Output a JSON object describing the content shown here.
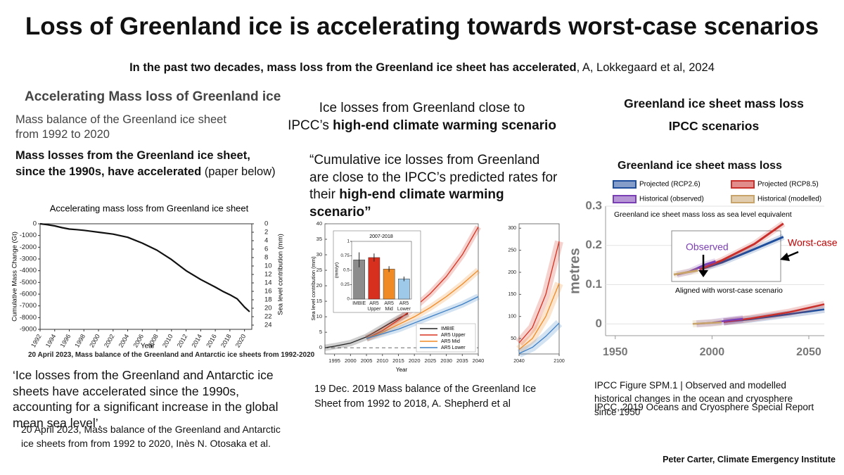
{
  "slide": {
    "title": "Loss of Greenland ice is accelerating towards worst-case scenarios",
    "subtitle": {
      "bold": "In the past two decades, mass loss from the Greenland ice sheet has accelerated",
      "rest": ", A, Lokkegaard et al, 2024"
    },
    "left": {
      "heading": "Accelerating Mass loss of Greenland  ice",
      "intro": "Mass balance of the Greenland  ice sheet from 1992 to 2020",
      "claim": {
        "bold": "Mass losses from the Greenland ice sheet, since the 1990s, have accelerated",
        "rest": " (paper below)"
      },
      "figure_caption": "20 April 2023, Mass balance of the Greenland and Antarctic ice sheets from 1992-2020",
      "quote": "‘Ice losses from the Greenland and Antarctic ice sheets have accelerated since the 1990s, accounting for a significant increase in the global mean sea level’.",
      "citation": "20 April 2023, Mass balance of the Greenland and Antarctic ice sheets from from 1992 to 2020, Inès N. Otosaka et al."
    },
    "middle": {
      "heading": {
        "line1": "Ice losses from  Greenland close to",
        "line2_plain": "IPCC’s ",
        "line2_bold": "high-end climate warming scenario"
      },
      "quote": {
        "plain": "“Cumulative ice losses from  Greenland are close to the IPCC’s predicted rates for their ",
        "bold": "high-end climate warming scenario”"
      },
      "citation": "19 Dec. 2019 Mass balance of the Greenland Ice Sheet from 1992 to 2018, A. Shepherd et al"
    },
    "right": {
      "heading1": "Greenland ice sheet mass loss",
      "heading2": "IPCC scenarios",
      "caption": "IPCC Figure SPM.1 | Observed and modelled historical changes in the ocean and cryosphere since 1950",
      "citation": "IPCC, 2019 Oceans and Cryosphere Special Report"
    },
    "footer": "Peter Carter, Climate Emergency Institute"
  },
  "chart_data": [
    {
      "type": "line",
      "title": "Accelerating mass loss from Greenland ice sheet",
      "x_label": "Year",
      "y_label": "Cumulative Mass Change (Gt)",
      "y2_label": "Sea level contribution (mm)",
      "xlim": [
        1992,
        2021
      ],
      "xticks": [
        1992,
        1994,
        1996,
        1998,
        2000,
        2002,
        2004,
        2006,
        2008,
        2010,
        2012,
        2014,
        2016,
        2018,
        2020
      ],
      "ylim": [
        -9000,
        0
      ],
      "yticks": [
        0,
        -1000,
        -2000,
        -3000,
        -4000,
        -5000,
        -6000,
        -7000,
        -8000,
        -9000
      ],
      "y2lim": [
        25,
        0
      ],
      "y2ticks": [
        0,
        2,
        4,
        6,
        8,
        10,
        12,
        14,
        16,
        18,
        20,
        22,
        24
      ],
      "series": [
        {
          "color": "#111111",
          "x": [
            1992,
            1993,
            1994,
            1995,
            1996,
            1997,
            1998,
            2000,
            2002,
            2004,
            2006,
            2008,
            2010,
            2012,
            2014,
            2016,
            2017,
            2018,
            2019,
            2020,
            2020.7
          ],
          "values": [
            0,
            -80,
            -180,
            -330,
            -450,
            -500,
            -560,
            -720,
            -880,
            -1150,
            -1650,
            -2250,
            -3050,
            -4000,
            -4750,
            -5400,
            -5750,
            -6050,
            -6400,
            -7100,
            -7500
          ]
        }
      ]
    },
    {
      "type": "line",
      "x_label": "Year",
      "y_label": "Sea level contribution (mm)",
      "xlim": [
        1992,
        2040
      ],
      "xticks": [
        1995,
        2000,
        2005,
        2010,
        2015,
        2020,
        2025,
        2030,
        2035,
        2040
      ],
      "ylim": [
        -2,
        40
      ],
      "yticks": [
        0,
        5,
        10,
        15,
        20,
        25,
        30,
        35,
        40
      ],
      "series": [
        {
          "name": "IMBIE",
          "color": "#222222",
          "x": [
            1992,
            1995,
            2000,
            2005,
            2010,
            2015,
            2018
          ],
          "values": [
            0,
            0.5,
            1.5,
            3.5,
            6.5,
            9.5,
            11
          ]
        },
        {
          "name": "AR5 Upper",
          "color": "#d7301f",
          "x": [
            2005,
            2010,
            2015,
            2020,
            2025,
            2030,
            2035,
            2040
          ],
          "values": [
            3,
            5.5,
            9,
            13,
            17.5,
            23,
            30,
            39
          ]
        },
        {
          "name": "AR5 Mid",
          "color": "#f08a24",
          "x": [
            2005,
            2010,
            2015,
            2020,
            2025,
            2030,
            2035,
            2040
          ],
          "values": [
            3,
            5,
            7.5,
            10,
            13,
            16.5,
            20.5,
            25
          ]
        },
        {
          "name": "AR5 Lower",
          "color": "#3d7fc4",
          "x": [
            2005,
            2010,
            2015,
            2020,
            2025,
            2030,
            2035,
            2040
          ],
          "values": [
            3,
            4.5,
            6,
            8,
            10,
            12,
            14,
            16.5
          ]
        }
      ]
    },
    {
      "type": "bar",
      "title": "2007-2018",
      "y_label": "(mm/yr)",
      "categories": [
        "IMBIE",
        "AR5 Upper",
        "AR5 Mid",
        "AR5 Lower"
      ],
      "values": [
        0.68,
        0.72,
        0.52,
        0.35
      ],
      "errors": [
        0.13,
        0.07,
        0.05,
        0.04
      ],
      "colors": [
        "#8c8c8c",
        "#d7301f",
        "#f08a24",
        "#9ec9e8"
      ],
      "ylim": [
        0,
        1
      ],
      "yticks": [
        0,
        0.25,
        0.5,
        0.75,
        1
      ]
    },
    {
      "type": "line",
      "xlim": [
        2040,
        2100
      ],
      "xticks": [
        2040,
        2100
      ],
      "ylim": [
        15,
        310
      ],
      "yticks": [
        50,
        100,
        150,
        200,
        250,
        300
      ],
      "series": [
        {
          "color": "#d7301f",
          "x": [
            2040,
            2060,
            2080,
            2100
          ],
          "values": [
            40,
            75,
            150,
            270
          ]
        },
        {
          "color": "#f08a24",
          "x": [
            2040,
            2060,
            2080,
            2100
          ],
          "values": [
            25,
            50,
            100,
            175
          ]
        },
        {
          "color": "#3d7fc4",
          "x": [
            2040,
            2060,
            2080,
            2100
          ],
          "values": [
            16,
            30,
            55,
            85
          ]
        }
      ]
    },
    {
      "type": "line",
      "title": "Greenland ice sheet mass loss",
      "subtitle": "Greenland ice sheet mass loss as sea level equivalent",
      "y_label": "metres",
      "xlim": [
        1945,
        2058
      ],
      "xticks": [
        1950,
        2000,
        2050
      ],
      "ylim": [
        -0.03,
        0.3
      ],
      "yticks": [
        0,
        0.1,
        0.2,
        0.3
      ],
      "series": [
        {
          "name": "Projected (RCP2.6)",
          "color": "#1f4e9c",
          "x": [
            2006,
            2020,
            2040,
            2058
          ],
          "values": [
            0.005,
            0.012,
            0.025,
            0.037
          ]
        },
        {
          "name": "Projected (RCP8.5)",
          "color": "#c9302c",
          "x": [
            2006,
            2020,
            2040,
            2058
          ],
          "values": [
            0.005,
            0.014,
            0.03,
            0.05
          ]
        },
        {
          "name": "Historical (observed)",
          "color": "#7b3fb5",
          "x": [
            1992,
            2000,
            2010,
            2016
          ],
          "values": [
            0,
            0.003,
            0.01,
            0.013
          ]
        },
        {
          "name": "Historical (modelled)",
          "color": "#c8a46a",
          "x": [
            1990,
            2005
          ],
          "values": [
            0,
            0.004
          ]
        }
      ],
      "annotations": [
        "Observed",
        "Worst-case",
        "Aligned with worst-case scenario"
      ]
    }
  ]
}
